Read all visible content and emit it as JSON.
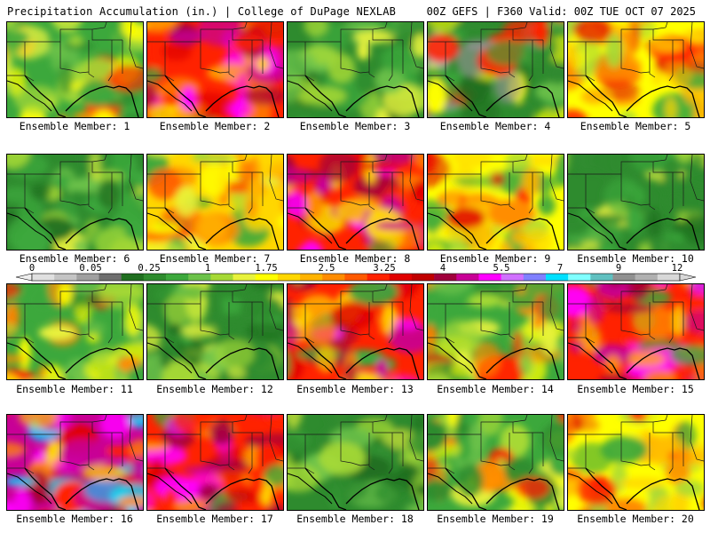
{
  "header": {
    "title": "Precipitation Accumulation (in.) | College of DuPage NEXLAB",
    "run_info": "00Z GEFS | F360 Valid: 00Z TUE OCT 07 2025"
  },
  "member_label_prefix": "Ensemble Member: ",
  "members": [
    {
      "number": 1,
      "dominant": "mixed-green"
    },
    {
      "number": 2,
      "dominant": "wet-red"
    },
    {
      "number": 3,
      "dominant": "green"
    },
    {
      "number": 4,
      "dominant": "green-gray"
    },
    {
      "number": 5,
      "dominant": "yellow-red"
    },
    {
      "number": 6,
      "dominant": "green"
    },
    {
      "number": 7,
      "dominant": "yellow-orange"
    },
    {
      "number": 8,
      "dominant": "wet-red"
    },
    {
      "number": 9,
      "dominant": "yellow-red"
    },
    {
      "number": 10,
      "dominant": "green"
    },
    {
      "number": 11,
      "dominant": "mixed-green"
    },
    {
      "number": 12,
      "dominant": "green"
    },
    {
      "number": 13,
      "dominant": "wet-red"
    },
    {
      "number": 14,
      "dominant": "mixed-green"
    },
    {
      "number": 15,
      "dominant": "wet-red"
    },
    {
      "number": 16,
      "dominant": "very-wet"
    },
    {
      "number": 17,
      "dominant": "wet-red"
    },
    {
      "number": 18,
      "dominant": "green"
    },
    {
      "number": 19,
      "dominant": "mixed-green"
    },
    {
      "number": 20,
      "dominant": "yellow-red"
    }
  ],
  "legend": {
    "tick_labels": [
      "0",
      "0.05",
      "0.25",
      "1",
      "1.75",
      "2.5",
      "3.25",
      "4",
      "5.5",
      "7",
      "9",
      "12"
    ],
    "colors": [
      "#e0e0e0",
      "#c4c4c4",
      "#a0a0a0",
      "#6e6e6e",
      "#1f6e1f",
      "#2e8b2e",
      "#3ca83c",
      "#6cc24a",
      "#a6d936",
      "#e8f23c",
      "#ffff00",
      "#ffd700",
      "#ffb300",
      "#ff8c00",
      "#ff5a00",
      "#ff2200",
      "#e00000",
      "#c00000",
      "#a0003c",
      "#c80096",
      "#ff00ff",
      "#d070ff",
      "#8080ff",
      "#00e0ff",
      "#80ffff",
      "#60c0c0",
      "#909090",
      "#b0b0b0",
      "#d8d8d8"
    ]
  }
}
